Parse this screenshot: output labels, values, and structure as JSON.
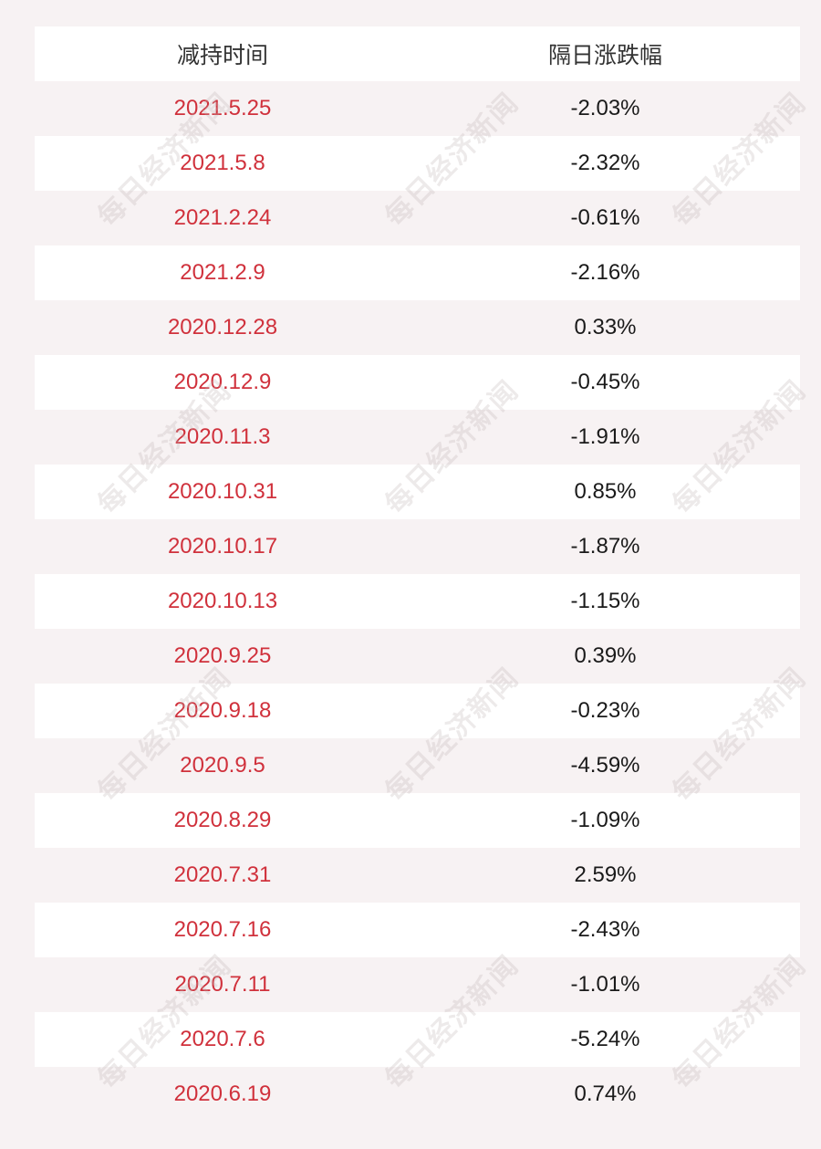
{
  "header": {
    "col_date": "减持时间",
    "col_change": "隔日涨跌幅"
  },
  "rows": [
    {
      "date": "2021.5.25",
      "change": "-2.03%"
    },
    {
      "date": "2021.5.8",
      "change": "-2.32%"
    },
    {
      "date": "2021.2.24",
      "change": "-0.61%"
    },
    {
      "date": "2021.2.9",
      "change": "-2.16%"
    },
    {
      "date": "2020.12.28",
      "change": "0.33%"
    },
    {
      "date": "2020.12.9",
      "change": "-0.45%"
    },
    {
      "date": "2020.11.3",
      "change": "-1.91%"
    },
    {
      "date": "2020.10.31",
      "change": "0.85%"
    },
    {
      "date": "2020.10.17",
      "change": "-1.87%"
    },
    {
      "date": "2020.10.13",
      "change": "-1.15%"
    },
    {
      "date": "2020.9.25",
      "change": "0.39%"
    },
    {
      "date": "2020.9.18",
      "change": "-0.23%"
    },
    {
      "date": "2020.9.5",
      "change": "-4.59%"
    },
    {
      "date": "2020.8.29",
      "change": "-1.09%"
    },
    {
      "date": "2020.7.31",
      "change": "2.59%"
    },
    {
      "date": "2020.7.16",
      "change": "-2.43%"
    },
    {
      "date": "2020.7.11",
      "change": "-1.01%"
    },
    {
      "date": "2020.7.6",
      "change": "-5.24%"
    },
    {
      "date": "2020.6.19",
      "change": "0.74%"
    }
  ],
  "watermark": "每日经济新闻",
  "colors": {
    "date_text": "#d0313c",
    "change_text": "#1a1a1a",
    "band": "#f7f2f3",
    "row": "#ffffff"
  }
}
